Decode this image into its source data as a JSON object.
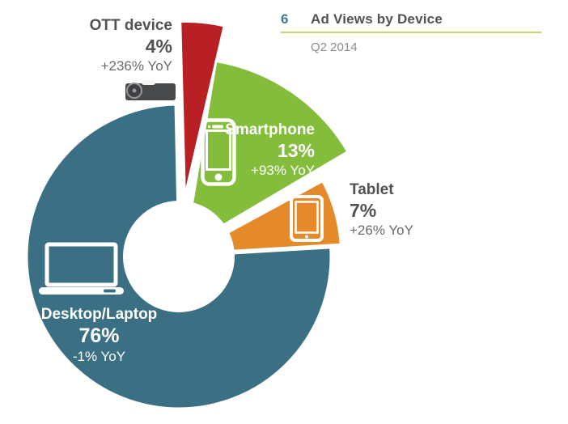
{
  "header": {
    "figure_number": "6",
    "title": "Ad Views by Device",
    "subtitle": "Q2 2014",
    "number_color": "#3C7B8E",
    "underline_color": "#C9D46C"
  },
  "chart_data": {
    "type": "pie",
    "variant": "exploded-donut",
    "title": "Ad Views by Device",
    "period": "Q2 2014",
    "start_angle": "top",
    "direction": "clockwise",
    "legend": "none",
    "slices": [
      {
        "label": "OTT device",
        "value": 4,
        "value_text": "4%",
        "yoy_text": "+236% YoY",
        "color": "#B82026",
        "icon": "ott-set-top-box-icon",
        "label_placement": "outside-top-left"
      },
      {
        "label": "Smartphone",
        "value": 13,
        "value_text": "13%",
        "yoy_text": "+93% YoY",
        "color": "#84BD3B",
        "icon": "smartphone-icon",
        "label_placement": "inside"
      },
      {
        "label": "Tablet",
        "value": 7,
        "value_text": "7%",
        "yoy_text": "+26% YoY",
        "color": "#E48A2A",
        "icon": "tablet-icon",
        "label_placement": "outside-right"
      },
      {
        "label": "Desktop/Laptop",
        "value": 76,
        "value_text": "76%",
        "yoy_text": "-1% YoY",
        "color": "#3B7084",
        "icon": "laptop-icon",
        "label_placement": "inside"
      }
    ]
  }
}
